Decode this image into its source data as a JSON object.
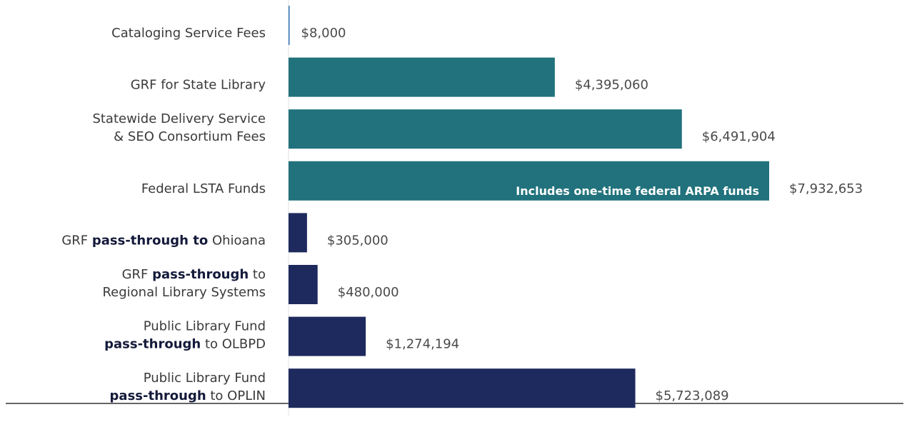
{
  "chart_data": {
    "type": "bar",
    "orientation": "horizontal",
    "categories": [
      [
        [
          "Cataloging Service Fees"
        ]
      ],
      [
        [
          "GRF for State Library"
        ]
      ],
      [
        [
          "Statewide Delivery Service"
        ],
        [
          "& SEO Consortium Fees"
        ]
      ],
      [
        [
          "Federal LSTA Funds"
        ]
      ],
      [
        [
          "GRF ",
          {
            "text": "pass-through to",
            "bold": true
          },
          " Ohioana"
        ]
      ],
      [
        [
          "GRF ",
          {
            "text": "pass-through",
            "bold": true
          },
          " to"
        ],
        [
          "Regional Library Systems"
        ]
      ],
      [
        [
          "Public Library Fund"
        ],
        [
          {
            "text": "pass-through",
            "bold": true
          },
          " to OLBPD"
        ]
      ],
      [
        [
          "Public Library Fund"
        ],
        [
          {
            "text": "pass-through",
            "bold": true
          },
          " to OPLIN"
        ]
      ]
    ],
    "values": [
      8000,
      4395060,
      6491904,
      7932653,
      305000,
      480000,
      1274194,
      5723089
    ],
    "value_labels": [
      "$8,000",
      "$4,395,060",
      "$6,491,904",
      "$7,932,653",
      "$305,000",
      "$480,000",
      "$1,274,194",
      "$5,723,089"
    ],
    "colors": [
      "#2e6fb0",
      "#21727c",
      "#21727c",
      "#21727c",
      "#1e2a5e",
      "#1e2a5e",
      "#1e2a5e",
      "#1e2a5e"
    ],
    "annotations": [
      {
        "text": "Includes one-time federal ARPA funds",
        "category_index": 3
      }
    ]
  }
}
